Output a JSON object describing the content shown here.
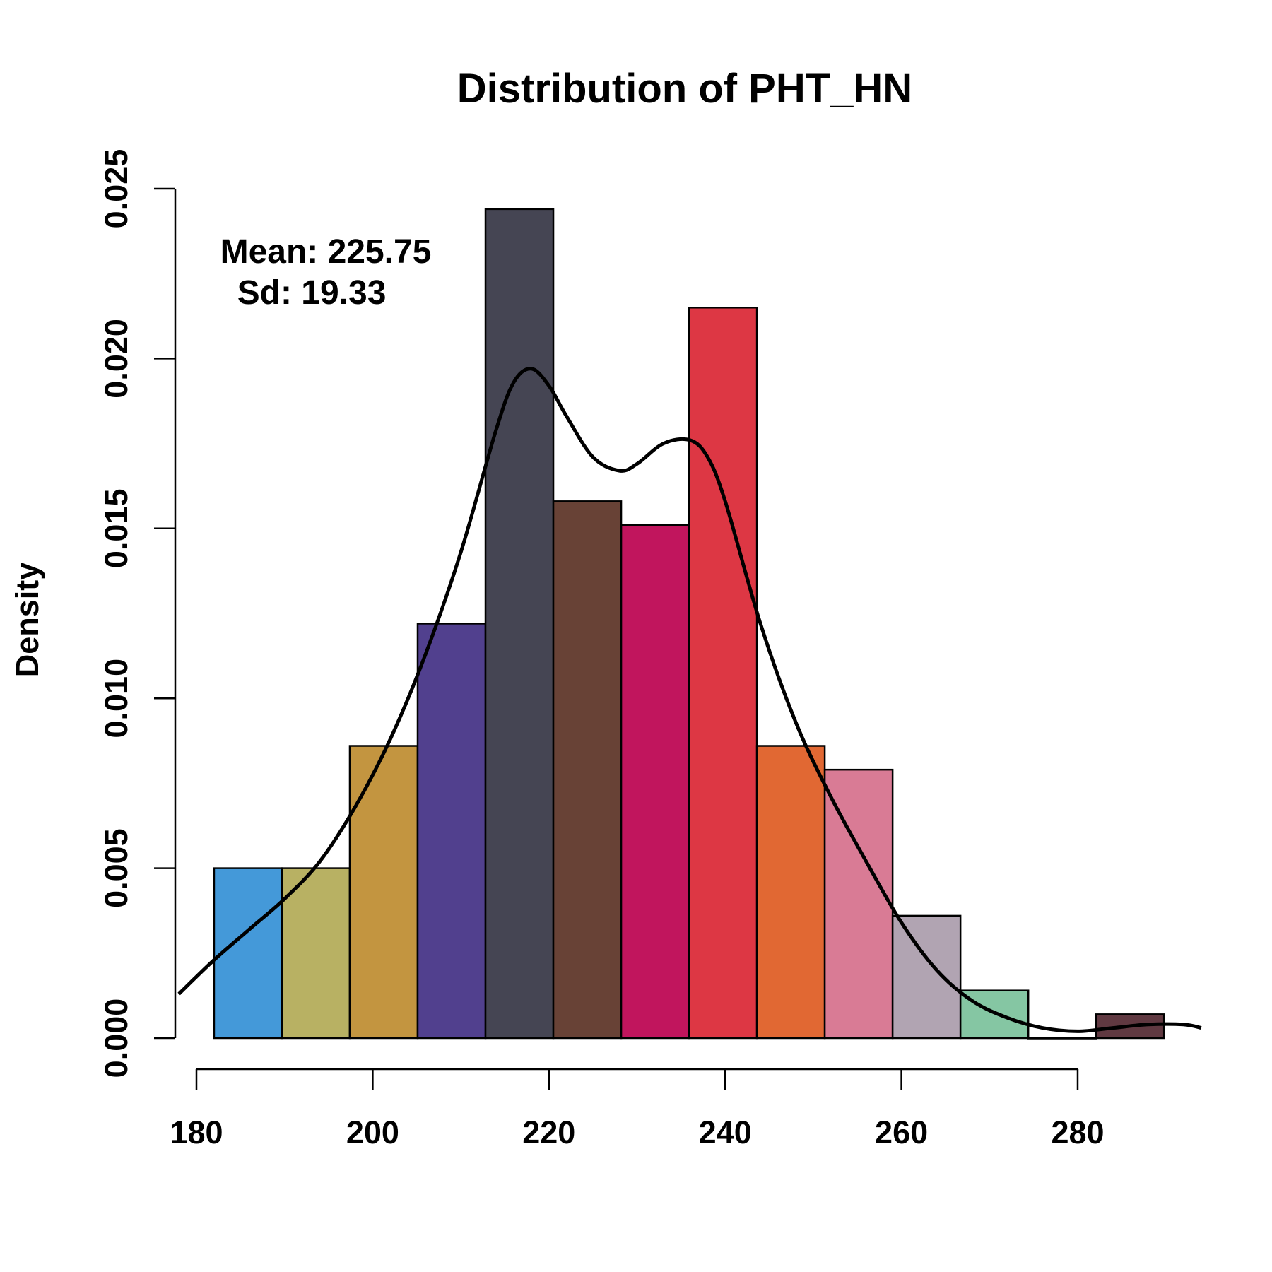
{
  "chart_data": {
    "type": "bar",
    "subtype": "histogram",
    "title": "Distribution of PHT_HN",
    "xlabel": "",
    "ylabel": "Density",
    "xlim": [
      180,
      290
    ],
    "ylim": [
      0,
      0.025
    ],
    "x_ticks": [
      180,
      200,
      220,
      240,
      260,
      280
    ],
    "y_ticks": [
      "0.000",
      "0.005",
      "0.010",
      "0.015",
      "0.020",
      "0.025"
    ],
    "grid": false,
    "annotations": {
      "mean": "Mean: 225.75",
      "sd": "Sd: 19.33"
    },
    "bins": [
      {
        "x0": 182.0,
        "x1": 189.7,
        "density": 0.005,
        "color": "#4499D9"
      },
      {
        "x0": 189.7,
        "x1": 197.4,
        "density": 0.005,
        "color": "#B8B163"
      },
      {
        "x0": 197.4,
        "x1": 205.1,
        "density": 0.0086,
        "color": "#C39540"
      },
      {
        "x0": 205.1,
        "x1": 212.8,
        "density": 0.0122,
        "color": "#51408E"
      },
      {
        "x0": 212.8,
        "x1": 220.5,
        "density": 0.0244,
        "color": "#454553"
      },
      {
        "x0": 220.5,
        "x1": 228.2,
        "density": 0.0158,
        "color": "#684236"
      },
      {
        "x0": 228.2,
        "x1": 235.9,
        "density": 0.0151,
        "color": "#C1155D"
      },
      {
        "x0": 235.9,
        "x1": 243.6,
        "density": 0.0215,
        "color": "#DD3744"
      },
      {
        "x0": 243.6,
        "x1": 251.3,
        "density": 0.0086,
        "color": "#E16833"
      },
      {
        "x0": 251.3,
        "x1": 259.0,
        "density": 0.0079,
        "color": "#D97B95"
      },
      {
        "x0": 259.0,
        "x1": 266.7,
        "density": 0.0036,
        "color": "#B1A4B2"
      },
      {
        "x0": 266.7,
        "x1": 274.4,
        "density": 0.0014,
        "color": "#85C6A3"
      },
      {
        "x0": 274.4,
        "x1": 282.1,
        "density": 0.0,
        "color": "#FFFFFF"
      },
      {
        "x0": 282.1,
        "x1": 289.8,
        "density": 0.0007,
        "color": "#603941"
      }
    ],
    "density_curve": {
      "x": [
        178,
        182,
        186,
        190,
        194,
        198,
        202,
        206,
        210,
        214,
        216,
        218,
        220,
        222,
        225,
        228,
        230,
        233,
        236,
        238,
        240,
        244,
        248,
        252,
        256,
        260,
        264,
        268,
        272,
        276,
        280,
        284,
        288,
        292,
        295
      ],
      "y": [
        0.0013,
        0.0023,
        0.0032,
        0.0041,
        0.0052,
        0.0068,
        0.0088,
        0.0113,
        0.0143,
        0.0179,
        0.0193,
        0.0197,
        0.0192,
        0.0183,
        0.0171,
        0.0167,
        0.0169,
        0.0175,
        0.0176,
        0.0171,
        0.0158,
        0.0122,
        0.0093,
        0.0071,
        0.0052,
        0.0034,
        0.002,
        0.0011,
        0.0006,
        0.0003,
        0.0002,
        0.0003,
        0.0004,
        0.0004,
        0.0003
      ]
    }
  }
}
